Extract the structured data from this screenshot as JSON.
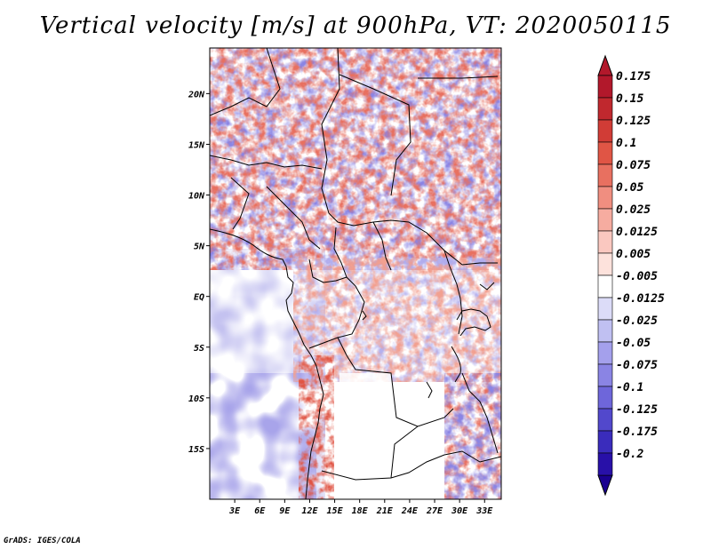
{
  "map": {
    "title": "Vertical velocity [m/s] at 900hPa, VT: 2020050115",
    "footer": "GrADS: IGES/COLA",
    "lat_labels": [
      {
        "value": 20,
        "label": "20N"
      },
      {
        "value": 15,
        "label": "15N"
      },
      {
        "value": 10,
        "label": "10N"
      },
      {
        "value": 5,
        "label": "5N"
      },
      {
        "value": 0,
        "label": "EQ"
      },
      {
        "value": -5,
        "label": "5S"
      },
      {
        "value": -10,
        "label": "10S"
      },
      {
        "value": -15,
        "label": "15S"
      }
    ],
    "lon_labels": [
      {
        "value": 3,
        "label": "3E"
      },
      {
        "value": 6,
        "label": "6E"
      },
      {
        "value": 9,
        "label": "9E"
      },
      {
        "value": 12,
        "label": "12E"
      },
      {
        "value": 15,
        "label": "15E"
      },
      {
        "value": 18,
        "label": "18E"
      },
      {
        "value": 21,
        "label": "21E"
      },
      {
        "value": 24,
        "label": "24E"
      },
      {
        "value": 27,
        "label": "27E"
      },
      {
        "value": 30,
        "label": "30E"
      },
      {
        "value": 33,
        "label": "33E"
      }
    ],
    "lat_range": [
      -20,
      24.5
    ],
    "lon_range": [
      0,
      35
    ]
  },
  "colorbar": {
    "levels": [
      {
        "label": "0.175",
        "color": "#b2182b"
      },
      {
        "label": "0.15",
        "color": "#c0282e"
      },
      {
        "label": "0.125",
        "color": "#d13c36"
      },
      {
        "label": "0.1",
        "color": "#e05545"
      },
      {
        "label": "0.075",
        "color": "#e87060"
      },
      {
        "label": "0.05",
        "color": "#f08e80"
      },
      {
        "label": "0.025",
        "color": "#f6aca0"
      },
      {
        "label": "0.0125",
        "color": "#fac8c0"
      },
      {
        "label": "0.005",
        "color": "#fde2dc"
      },
      {
        "label": "-0.005",
        "color": "#ffffff"
      },
      {
        "label": "-0.0125",
        "color": "#dcdcf8"
      },
      {
        "label": "-0.025",
        "color": "#c0c0f2"
      },
      {
        "label": "-0.05",
        "color": "#a4a0ec"
      },
      {
        "label": "-0.075",
        "color": "#8a84e4"
      },
      {
        "label": "-0.1",
        "color": "#6e66da"
      },
      {
        "label": "-0.125",
        "color": "#5248cc"
      },
      {
        "label": "-0.175",
        "color": "#3a2cbc"
      },
      {
        "label": "-0.2",
        "color": "#2810a8"
      }
    ],
    "top_color": "#b2182b",
    "bottom_color": "#1a0090"
  }
}
